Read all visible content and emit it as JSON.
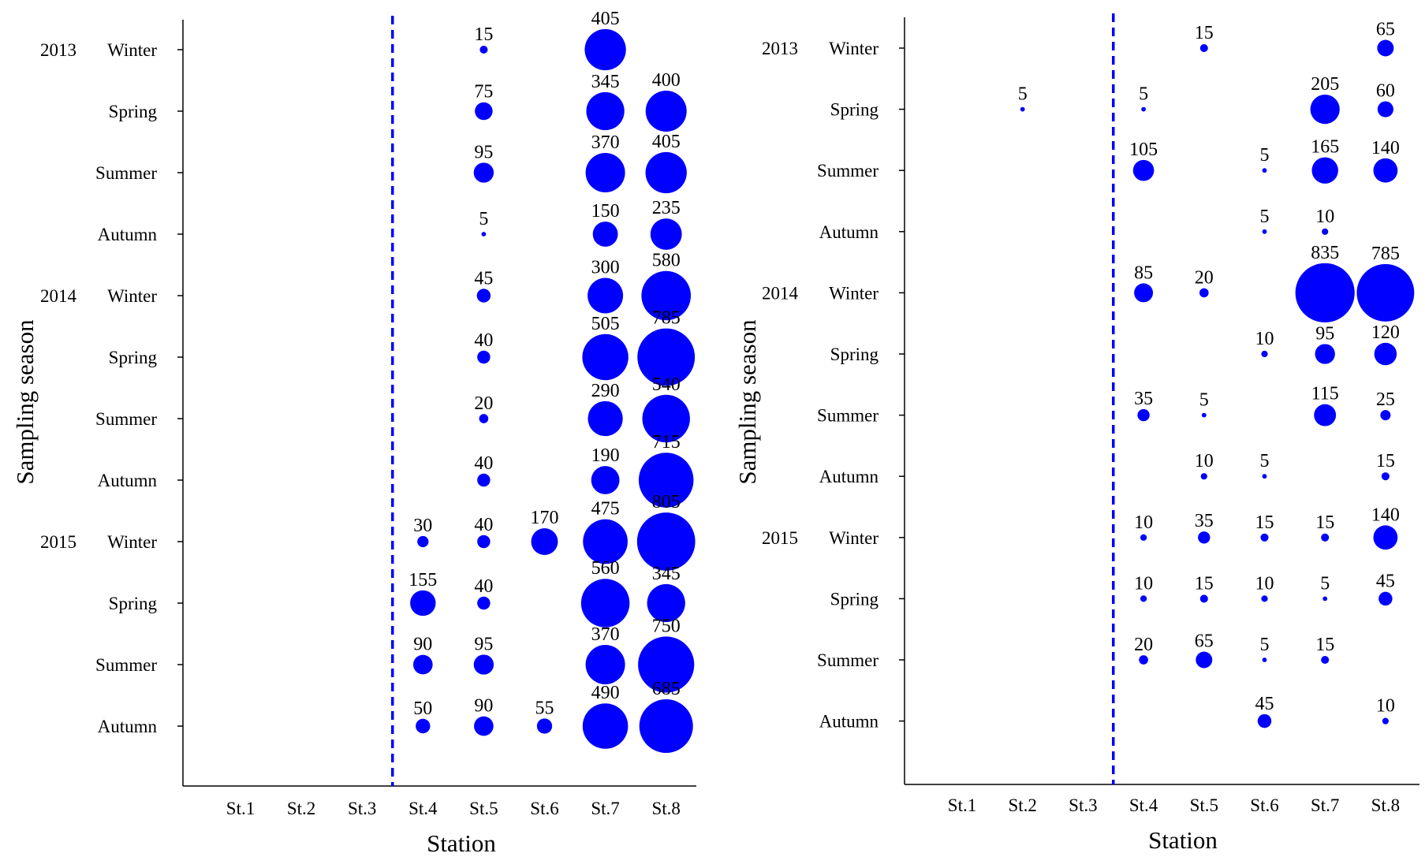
{
  "chart_data": [
    {
      "type": "scatter",
      "subtype": "bubble",
      "xlabel": "Station",
      "ylabel": "Sampling season",
      "stations": [
        "St.1",
        "St.2",
        "St.3",
        "St.4",
        "St.5",
        "St.6",
        "St.7",
        "St.8"
      ],
      "seasons": [
        {
          "year": "2013",
          "season": "Winter"
        },
        {
          "year": "",
          "season": "Spring"
        },
        {
          "year": "",
          "season": "Summer"
        },
        {
          "year": "",
          "season": "Autumn"
        },
        {
          "year": "2014",
          "season": "Winter"
        },
        {
          "year": "",
          "season": "Spring"
        },
        {
          "year": "",
          "season": "Summer"
        },
        {
          "year": "",
          "season": "Autumn"
        },
        {
          "year": "2015",
          "season": "Winter"
        },
        {
          "year": "",
          "season": "Spring"
        },
        {
          "year": "",
          "season": "Summer"
        },
        {
          "year": "",
          "season": "Autumn"
        }
      ],
      "divider_between": [
        "St.3",
        "St.4"
      ],
      "bubble_color": "#0000ff",
      "divider_color": "#0000ff",
      "values": [
        [
          null,
          null,
          null,
          null,
          15,
          null,
          405,
          null
        ],
        [
          null,
          null,
          null,
          null,
          75,
          null,
          345,
          400
        ],
        [
          null,
          null,
          null,
          null,
          95,
          null,
          370,
          405
        ],
        [
          null,
          null,
          null,
          null,
          5,
          null,
          150,
          235
        ],
        [
          null,
          null,
          null,
          null,
          45,
          null,
          300,
          580
        ],
        [
          null,
          null,
          null,
          null,
          40,
          null,
          505,
          785
        ],
        [
          null,
          null,
          null,
          null,
          20,
          null,
          290,
          540
        ],
        [
          null,
          null,
          null,
          null,
          40,
          null,
          190,
          715
        ],
        [
          null,
          null,
          null,
          30,
          40,
          170,
          475,
          805
        ],
        [
          null,
          null,
          null,
          155,
          40,
          null,
          560,
          345
        ],
        [
          null,
          null,
          null,
          90,
          95,
          null,
          370,
          750
        ],
        [
          null,
          null,
          null,
          50,
          90,
          55,
          490,
          685
        ]
      ]
    },
    {
      "type": "scatter",
      "subtype": "bubble",
      "xlabel": "Station",
      "ylabel": "Sampling season",
      "stations": [
        "St.1",
        "St.2",
        "St.3",
        "St.4",
        "St.5",
        "St.6",
        "St.7",
        "St.8"
      ],
      "seasons": [
        {
          "year": "2013",
          "season": "Winter"
        },
        {
          "year": "",
          "season": "Spring"
        },
        {
          "year": "",
          "season": "Summer"
        },
        {
          "year": "",
          "season": "Autumn"
        },
        {
          "year": "2014",
          "season": "Winter"
        },
        {
          "year": "",
          "season": "Spring"
        },
        {
          "year": "",
          "season": "Summer"
        },
        {
          "year": "",
          "season": "Autumn"
        },
        {
          "year": "2015",
          "season": "Winter"
        },
        {
          "year": "",
          "season": "Spring"
        },
        {
          "year": "",
          "season": "Summer"
        },
        {
          "year": "",
          "season": "Autumn"
        }
      ],
      "divider_between": [
        "St.3",
        "St.4"
      ],
      "bubble_color": "#0000ff",
      "divider_color": "#0000ff",
      "values": [
        [
          null,
          null,
          null,
          null,
          15,
          null,
          null,
          65
        ],
        [
          null,
          5,
          null,
          5,
          null,
          null,
          205,
          60
        ],
        [
          null,
          null,
          null,
          105,
          null,
          5,
          165,
          140
        ],
        [
          null,
          null,
          null,
          null,
          null,
          5,
          10,
          null
        ],
        [
          null,
          null,
          null,
          85,
          20,
          null,
          835,
          785
        ],
        [
          null,
          null,
          null,
          null,
          null,
          10,
          95,
          120
        ],
        [
          null,
          null,
          null,
          35,
          5,
          null,
          115,
          25
        ],
        [
          null,
          null,
          null,
          null,
          10,
          5,
          null,
          15
        ],
        [
          null,
          null,
          null,
          10,
          35,
          15,
          15,
          140
        ],
        [
          null,
          null,
          null,
          10,
          15,
          10,
          5,
          45
        ],
        [
          null,
          null,
          null,
          20,
          65,
          5,
          15,
          null
        ],
        [
          null,
          null,
          null,
          null,
          null,
          45,
          null,
          10
        ]
      ]
    }
  ]
}
